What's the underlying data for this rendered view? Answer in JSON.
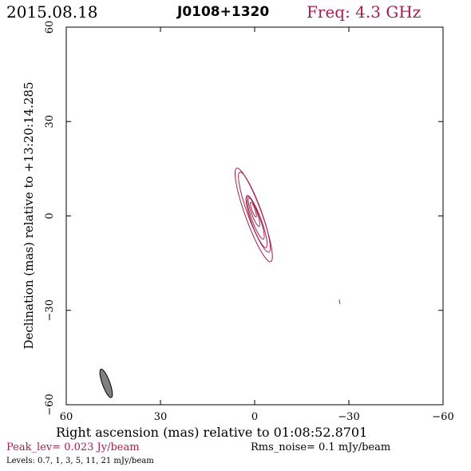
{
  "header": {
    "date": "2015.08.18",
    "source": "J0108+1320",
    "freq": "Freq: 4.3 GHz"
  },
  "footer": {
    "peak": "Peak_lev=  0.023 Jy/beam",
    "rms": "Rms_noise=  0.1 mJy/beam",
    "levels": "Levels: 0.7,   1,   3,   5,   11,   21 mJy/beam"
  },
  "colors": {
    "contour": "#a3204a",
    "beam": "#808080",
    "axis": "#000000"
  },
  "chart_data": {
    "type": "contour",
    "title": "J0108+1320",
    "xlabel": "Right ascension (mas) relative to 01:08:52.8701",
    "ylabel": "Declination (mas) relative to +13:20:14.285",
    "xlim": [
      60,
      -60
    ],
    "ylim": [
      -60,
      60
    ],
    "xticks": [
      60,
      30,
      0,
      -30,
      -60
    ],
    "yticks": [
      -60,
      -30,
      0,
      30,
      60
    ],
    "xtick_labels": [
      "60",
      "30",
      "0",
      "−30",
      "−60"
    ],
    "ytick_labels": [
      "−60",
      "−30",
      "0",
      "30",
      "60"
    ],
    "peak_jy_per_beam": 0.023,
    "rms_noise_mjy_per_beam": 0.1,
    "levels_mjy_per_beam": [
      0.7,
      1,
      3,
      5,
      11,
      21
    ],
    "contours": [
      {
        "level": 0.7,
        "center": [
          0.3,
          0.3
        ],
        "semi_major": 15.8,
        "semi_minor": 2.6,
        "pa_deg": -20
      },
      {
        "level": 1,
        "center": [
          0.1,
          1.2
        ],
        "semi_major": 13.5,
        "semi_minor": 2.2,
        "pa_deg": -20
      },
      {
        "level": 3,
        "center": [
          -0.6,
          -1.8
        ],
        "semi_major": 8.8,
        "semi_minor": 1.6,
        "pa_deg": -20
      },
      {
        "level": 5,
        "center": [
          -0.3,
          -0.6
        ],
        "semi_major": 7.2,
        "semi_minor": 1.3,
        "pa_deg": -20
      },
      {
        "level": 11,
        "center": [
          0.2,
          1.2
        ],
        "semi_major": 4.8,
        "semi_minor": 0.9,
        "pa_deg": -20
      },
      {
        "level": 21,
        "center": [
          0.4,
          2.0
        ],
        "semi_major": 2.5,
        "semi_minor": 0.5,
        "pa_deg": -20
      }
    ],
    "extra_contour": {
      "level": 0.7,
      "x": [
        -26.9,
        -27.2
      ],
      "y": [
        -26.6,
        -28.0
      ]
    },
    "beam": {
      "center": [
        47.3,
        -53.2
      ],
      "semi_major": 4.8,
      "semi_minor": 1.2,
      "pa_deg": -20
    }
  }
}
